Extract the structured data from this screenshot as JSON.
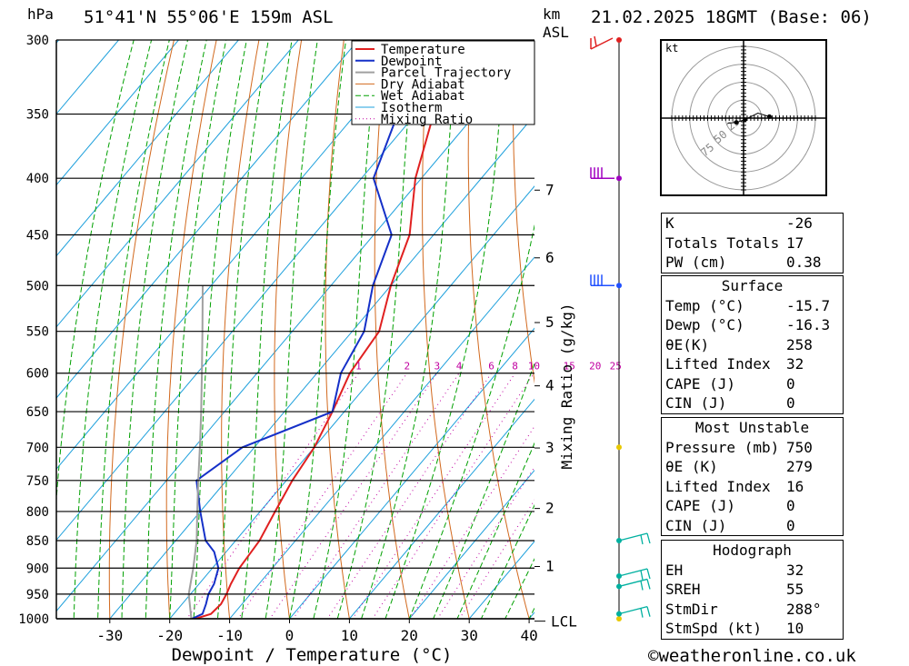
{
  "header": {
    "location": "51°41'N 55°06'E 159m ASL",
    "datetime": "21.02.2025 18GMT (Base: 06)",
    "pressure_unit": "hPa",
    "height_unit": "km",
    "height_unit2": "ASL"
  },
  "chart_data": {
    "type": "line",
    "title": "",
    "xlabel": "Dewpoint / Temperature (°C)",
    "ylabel": "hPa",
    "y2label": "Mixing Ratio (g/kg)",
    "xlim": [
      -40,
      40
    ],
    "ylim": [
      1000,
      300
    ],
    "y_scale": "log",
    "grid": true,
    "legend_position": "top-right",
    "x_ticks": [
      -30,
      -20,
      -10,
      0,
      10,
      20,
      30,
      40
    ],
    "pressure_ticks": [
      300,
      350,
      400,
      450,
      500,
      550,
      600,
      650,
      700,
      750,
      800,
      850,
      900,
      950,
      1000
    ],
    "km_ticks": [
      {
        "km": 1,
        "p": 897
      },
      {
        "km": 2,
        "p": 795
      },
      {
        "km": 3,
        "p": 701
      },
      {
        "km": 4,
        "p": 616
      },
      {
        "km": 5,
        "p": 540
      },
      {
        "km": 6,
        "p": 472
      },
      {
        "km": 7,
        "p": 410
      }
    ],
    "lcl_label": "LCL",
    "lcl_pressure": 1005,
    "mixing_ratio_labels": [
      "1",
      "2",
      "3",
      "4",
      "6",
      "8",
      "10",
      "15",
      "20",
      "25"
    ],
    "mixing_ratio_values": [
      1,
      2,
      3,
      4,
      6,
      8,
      10,
      15,
      20,
      25
    ],
    "mixing_ratio_label_pressure": 600,
    "legend": [
      "Temperature",
      "Dewpoint",
      "Parcel Trajectory",
      "Dry Adiabat",
      "Wet Adiabat",
      "Isotherm",
      "Mixing Ratio"
    ],
    "colors": {
      "temperature": "#e02020",
      "dewpoint": "#1530c8",
      "parcel": "#a0a0a0",
      "dry_adiabat": "#d2691e",
      "wet_adiabat": "#00a000",
      "isotherm": "#1ea0dc",
      "mixing_ratio": "#c000a0"
    },
    "series": [
      {
        "name": "Temperature",
        "pressure": [
          1000,
          990,
          970,
          950,
          930,
          900,
          870,
          850,
          800,
          750,
          700,
          650,
          600,
          550,
          500,
          450,
          400,
          350,
          300
        ],
        "values": [
          -15.7,
          -13.8,
          -13.5,
          -14,
          -14.7,
          -15.5,
          -15.8,
          -16,
          -17.5,
          -19,
          -20,
          -22,
          -24.5,
          -25.5,
          -30,
          -34,
          -41,
          -47,
          -51
        ]
      },
      {
        "name": "Dewpoint",
        "pressure": [
          1000,
          990,
          970,
          950,
          930,
          900,
          870,
          850,
          800,
          750,
          700,
          650,
          600,
          550,
          500,
          450,
          400,
          350,
          300
        ],
        "values": [
          -16.3,
          -15.2,
          -16,
          -17,
          -17.5,
          -19,
          -22,
          -25,
          -30,
          -35,
          -32,
          -22,
          -26,
          -28,
          -33,
          -37,
          -48,
          -53,
          -57
        ]
      },
      {
        "name": "Parcel Trajectory",
        "pressure": [
          1005,
          950,
          900,
          850,
          800,
          750,
          700,
          650,
          600,
          550,
          500
        ],
        "values": [
          -16,
          -20.3,
          -23.2,
          -26.5,
          -30.5,
          -34.7,
          -39.1,
          -43.9,
          -49.2,
          -55,
          -61.4
        ]
      }
    ],
    "wind_barbs": [
      {
        "p": 1000,
        "color": "#e8c800",
        "kind": "dot"
      },
      {
        "p": 990,
        "color": "#00b0a0",
        "kind": "barb"
      },
      {
        "p": 935,
        "color": "#00b0a0",
        "kind": "barb"
      },
      {
        "p": 915,
        "color": "#00b0a0",
        "kind": "barb"
      },
      {
        "p": 850,
        "color": "#00b0a0",
        "kind": "barb"
      },
      {
        "p": 700,
        "color": "#e8c800",
        "kind": "dot"
      },
      {
        "p": 500,
        "color": "#2050ff",
        "kind": "barb"
      },
      {
        "p": 400,
        "color": "#a000c0",
        "kind": "barb"
      },
      {
        "p": 300,
        "color": "#e02020",
        "kind": "barb"
      }
    ],
    "hodograph": {
      "unit_label": "kt",
      "ring_labels": [
        "25",
        "50",
        "75"
      ],
      "points_kt": [
        [
          -22,
          -7
        ],
        [
          -10,
          -6
        ],
        [
          2,
          -2
        ],
        [
          20,
          7
        ],
        [
          36,
          2
        ]
      ]
    }
  },
  "indices": [
    {
      "label": "K",
      "value": "-26"
    },
    {
      "label": "Totals Totals",
      "value": "17"
    },
    {
      "label": "PW (cm)",
      "value": "0.38"
    }
  ],
  "surface": {
    "title": "Surface",
    "rows": [
      {
        "label": "Temp (°C)",
        "value": "-15.7"
      },
      {
        "label": "Dewp (°C)",
        "value": "-16.3"
      },
      {
        "label": "θE(K)",
        "value": "258"
      },
      {
        "label": "Lifted Index",
        "value": "32"
      },
      {
        "label": "CAPE (J)",
        "value": "0"
      },
      {
        "label": "CIN (J)",
        "value": "0"
      }
    ]
  },
  "most_unstable": {
    "title": "Most Unstable",
    "rows": [
      {
        "label": "Pressure (mb)",
        "value": "750"
      },
      {
        "label": "θE (K)",
        "value": "279"
      },
      {
        "label": "Lifted Index",
        "value": "16"
      },
      {
        "label": "CAPE (J)",
        "value": "0"
      },
      {
        "label": "CIN (J)",
        "value": "0"
      }
    ]
  },
  "hodograph_table": {
    "title": "Hodograph",
    "rows": [
      {
        "label": "EH",
        "value": "32"
      },
      {
        "label": "SREH",
        "value": "55"
      },
      {
        "label": "StmDir",
        "value": "288°"
      },
      {
        "label": "StmSpd (kt)",
        "value": "10"
      }
    ]
  },
  "footer": {
    "copyright": "©weatheronline.co.uk"
  }
}
